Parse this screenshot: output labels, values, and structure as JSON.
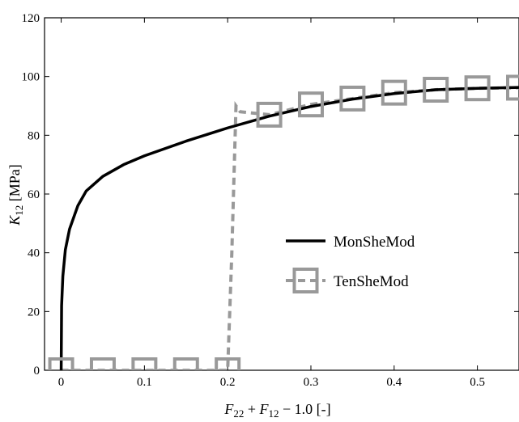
{
  "chart_data": {
    "type": "line",
    "xlabel": {
      "parts": [
        {
          "text": "F",
          "italic": true
        },
        {
          "text": "22",
          "sub": true
        },
        {
          "text": " + "
        },
        {
          "text": "F",
          "italic": true
        },
        {
          "text": "12",
          "sub": true
        },
        {
          "text": " − 1.0 [-]"
        }
      ]
    },
    "ylabel": {
      "parts": [
        {
          "text": "K",
          "italic": true
        },
        {
          "text": "12",
          "sub": true
        },
        {
          "text": " [MPa]"
        }
      ]
    },
    "xlim": [
      -0.02,
      0.55
    ],
    "ylim": [
      0,
      120
    ],
    "xticks": [
      0,
      0.1,
      0.2,
      0.3,
      0.4,
      0.5
    ],
    "xtick_labels": [
      "0",
      "0.1",
      "0.2",
      "0.3",
      "0.4",
      "0.5"
    ],
    "yticks": [
      0,
      20,
      40,
      60,
      80,
      100,
      120
    ],
    "ytick_labels": [
      "0",
      "20",
      "40",
      "60",
      "80",
      "100",
      "120"
    ],
    "grid": false,
    "legend_position": "center-right",
    "series": [
      {
        "name": "MonSheMod",
        "color": "#000000",
        "style": "solid",
        "marker": "none",
        "x": [
          0,
          0.0005,
          0.002,
          0.005,
          0.01,
          0.02,
          0.03,
          0.05,
          0.075,
          0.1,
          0.15,
          0.2,
          0.25,
          0.3,
          0.35,
          0.4,
          0.45,
          0.5,
          0.55
        ],
        "y": [
          0,
          22,
          32,
          41,
          48,
          56,
          61,
          66,
          70,
          73,
          78,
          82.5,
          86.5,
          89.8,
          92.3,
          94.2,
          95.5,
          96.0,
          96.3
        ]
      },
      {
        "name": "TenSheMod",
        "color": "#999999",
        "style": "dashed",
        "marker": "square",
        "x": [
          0,
          0.05,
          0.1,
          0.15,
          0.2,
          0.205,
          0.21,
          0.215,
          0.25,
          0.3,
          0.35,
          0.4,
          0.45,
          0.5,
          0.55
        ],
        "y": [
          0,
          0,
          0,
          0,
          0,
          40,
          90,
          88,
          87,
          90.5,
          92.5,
          94.5,
          95.5,
          96,
          96.2
        ],
        "marker_x": [
          0,
          0.05,
          0.1,
          0.15,
          0.2,
          0.25,
          0.3,
          0.35,
          0.4,
          0.45,
          0.5,
          0.55
        ],
        "marker_y": [
          0,
          0,
          0,
          0,
          0,
          87,
          90.5,
          92.5,
          94.5,
          95.5,
          96,
          96.2
        ]
      }
    ]
  }
}
